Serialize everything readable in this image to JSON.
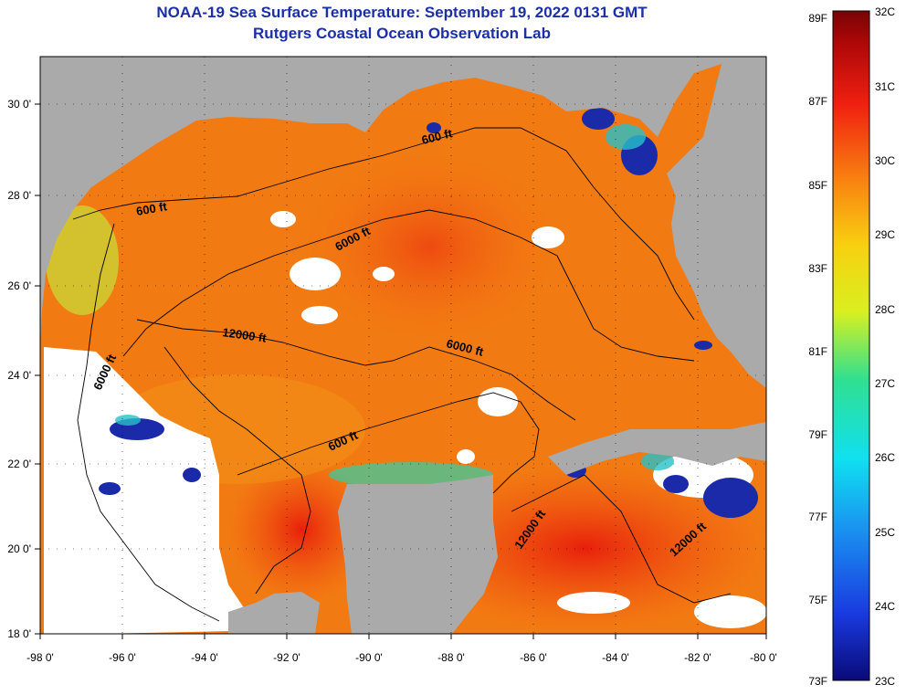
{
  "title": "NOAA-19 Sea Surface Temperature:  September 19, 2022 0131 GMT",
  "subtitle": "Rutgers Coastal Ocean Observation Lab",
  "axes": {
    "lon_ticks": [
      "-98 0'",
      "-96 0'",
      "-94 0'",
      "-92 0'",
      "-90 0'",
      "-88 0'",
      "-86 0'",
      "-84 0'",
      "-82 0'",
      "-80 0'"
    ],
    "lat_ticks": [
      "30 0'",
      "28 0'",
      "26 0'",
      "24 0'",
      "22 0'",
      "20 0'",
      "18 0'"
    ],
    "lon_range": [
      -98,
      -80
    ],
    "lat_range": [
      18,
      31.2
    ]
  },
  "contour_labels": [
    "600 ft",
    "600 ft",
    "6000 ft",
    "12000 ft",
    "6000 ft",
    "6000 ft",
    "600 ft",
    "12000 ft",
    "12000 ft"
  ],
  "colorbar": {
    "fahrenheit_labels": [
      "89F",
      "87F",
      "85F",
      "83F",
      "81F",
      "79F",
      "77F",
      "75F",
      "73F"
    ],
    "celsius_labels": [
      "32C",
      "31C",
      "30C",
      "29C",
      "28C",
      "27C",
      "26C",
      "25C",
      "24C",
      "23C"
    ],
    "range_c": [
      23,
      32
    ]
  },
  "colors": {
    "title": "#1c2fa6",
    "land": "#aaaaaa",
    "cloud": "#ffffff",
    "sst_warm": "#f26410",
    "sst_cool": "#26c6d0",
    "sst_cold": "#1a2aa8"
  }
}
